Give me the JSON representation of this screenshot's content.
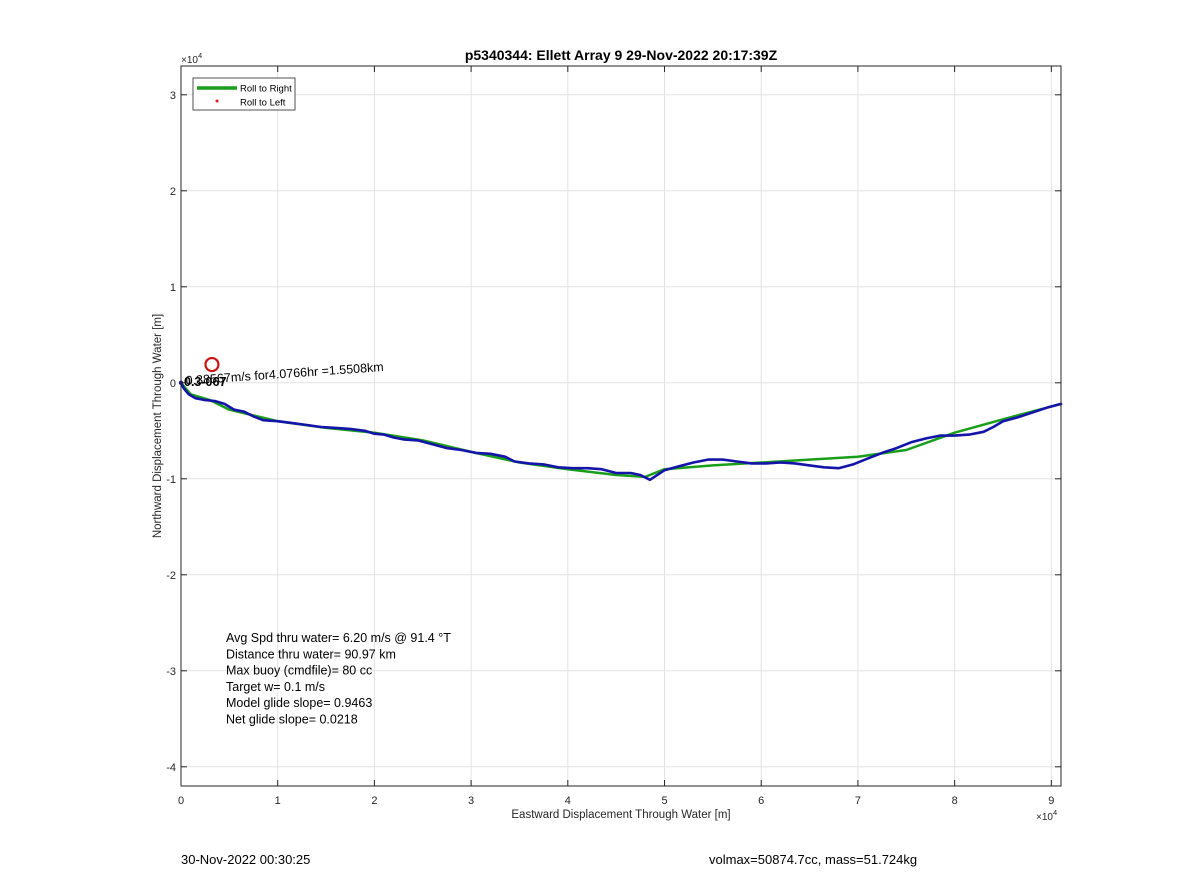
{
  "chart_data": {
    "type": "line",
    "title": "p5340344: Ellett Array 9 29-Nov-2022 20:17:39Z",
    "xlabel": "Eastward Displacement Through Water [m]",
    "ylabel": "Northward Displacement Through Water [m]",
    "x_exponent_label": "×10",
    "x_exponent_power": "4",
    "y_exponent_label": "×10",
    "y_exponent_power": "4",
    "xlim": [
      0,
      91000
    ],
    "ylim": [
      -42000,
      33000
    ],
    "xticks": [
      0,
      10000,
      20000,
      30000,
      40000,
      50000,
      60000,
      70000,
      80000,
      90000
    ],
    "xtick_labels": [
      "0",
      "1",
      "2",
      "3",
      "4",
      "5",
      "6",
      "7",
      "8",
      "9"
    ],
    "yticks": [
      -40000,
      -30000,
      -20000,
      -10000,
      0,
      10000,
      20000,
      30000
    ],
    "ytick_labels": [
      "-4",
      "-3",
      "-2",
      "-1",
      "0",
      "1",
      "2",
      "3"
    ],
    "grid": true,
    "legend_position": "top-left",
    "legend": [
      {
        "label": "Roll to Right",
        "color": "#1a9e1a",
        "style": "line"
      },
      {
        "label": "Roll to Left",
        "color": "#e02020",
        "style": "dot"
      }
    ],
    "series": [
      {
        "name": "Roll to Right",
        "color": "#1a9e1a",
        "x": [
          0,
          1000,
          3000,
          5000,
          10000,
          15000,
          20000,
          25000,
          30000,
          35000,
          40000,
          45000,
          48000,
          50000,
          55000,
          60000,
          65000,
          70000,
          75000,
          80000,
          85000,
          88000,
          91000
        ],
        "y": [
          0,
          -1200,
          -1800,
          -2800,
          -4000,
          -4700,
          -5200,
          -6000,
          -7200,
          -8300,
          -9000,
          -9600,
          -9800,
          -9000,
          -8600,
          -8300,
          -8000,
          -7700,
          -7000,
          -5200,
          -3800,
          -3000,
          -2200
        ]
      },
      {
        "name": "",
        "color": "#1414a8",
        "x": [
          0,
          300,
          800,
          1500,
          2500,
          3500,
          4500,
          5500,
          6500,
          7500,
          8500,
          10000,
          11500,
          13000,
          14500,
          16000,
          17500,
          19000,
          20000,
          21000,
          22000,
          23000,
          24500,
          26000,
          27500,
          29000,
          30500,
          32000,
          33500,
          34500,
          36000,
          37500,
          39000,
          40500,
          42000,
          43500,
          45000,
          46500,
          47500,
          48500,
          50000,
          51500,
          53000,
          54500,
          56000,
          57500,
          59000,
          60500,
          62000,
          63500,
          65000,
          66500,
          68000,
          69500,
          71000,
          72500,
          74000,
          75500,
          77000,
          78500,
          80000,
          81500,
          83000,
          84000,
          85000,
          86500,
          88000,
          89500,
          91000
        ],
        "y": [
          0,
          -600,
          -1200,
          -1600,
          -1800,
          -1900,
          -2200,
          -2800,
          -3000,
          -3500,
          -3900,
          -4000,
          -4200,
          -4400,
          -4600,
          -4700,
          -4800,
          -5000,
          -5300,
          -5400,
          -5700,
          -5900,
          -6000,
          -6400,
          -6800,
          -7000,
          -7300,
          -7400,
          -7700,
          -8200,
          -8400,
          -8500,
          -8800,
          -8900,
          -8900,
          -9000,
          -9400,
          -9400,
          -9600,
          -10100,
          -9100,
          -8700,
          -8300,
          -8000,
          -8000,
          -8200,
          -8400,
          -8400,
          -8300,
          -8400,
          -8600,
          -8800,
          -8900,
          -8500,
          -7900,
          -7300,
          -6800,
          -6200,
          -5800,
          -5500,
          -5500,
          -5400,
          -5100,
          -4600,
          -4000,
          -3600,
          -3100,
          -2600,
          -2200
        ]
      }
    ],
    "markers": [
      {
        "label": "",
        "x": 3200,
        "y": 1900,
        "color": "#cc1111",
        "shape": "open-circle"
      }
    ],
    "annotations": {
      "segment_label": "0.38567m/s for4.0766hr =1.5508km",
      "overlap_label": "0.3-067"
    },
    "stats_lines": [
      "Avg Spd thru water=  6.20 m/s @  91.4 °T",
      "Distance thru water= 90.97 km",
      "Max buoy (cmdfile)= 80 cc",
      "Target w= 0.1 m/s",
      "Model glide slope= 0.9463",
      "Net glide slope= 0.0218"
    ]
  },
  "footer": {
    "date": "30-Nov-2022 00:30:25",
    "summary": "volmax=50874.7cc, mass=51.724kg"
  }
}
